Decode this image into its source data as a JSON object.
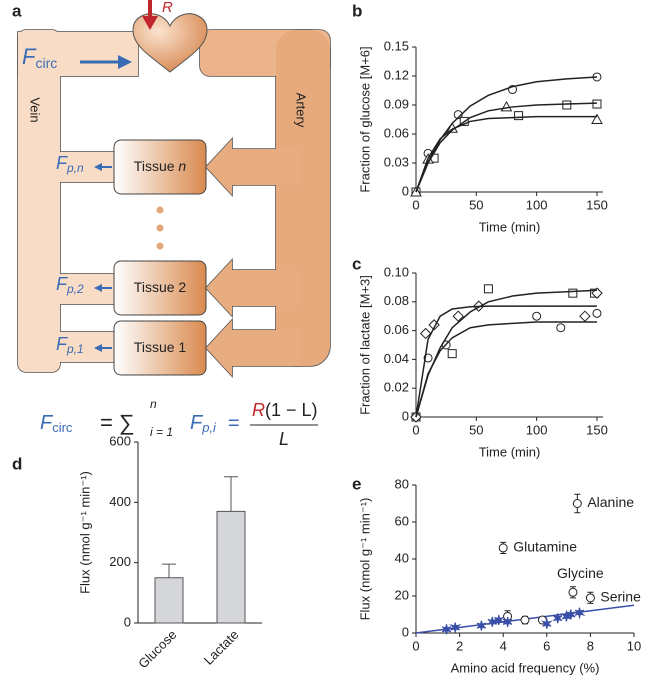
{
  "diagram": {
    "panel": "a",
    "input": "R",
    "fcirc": {
      "symbol": "F",
      "sub": "circ"
    },
    "vein": "Vein",
    "artery": "Artery",
    "tissues": [
      {
        "label": "Tissue",
        "index": "n",
        "flux": "F",
        "sub": "p,n"
      },
      {
        "label": "Tissue",
        "index": "2",
        "flux": "F",
        "sub": "p,2"
      },
      {
        "label": "Tissue",
        "index": "1",
        "flux": "F",
        "sub": "p,1"
      }
    ],
    "equation": {
      "lhs_symbol": "F",
      "lhs_sub": "circ",
      "sum": "= ∑",
      "sum_upper": "n",
      "sum_lower": "i = 1",
      "term_symbol": "F",
      "term_sub": "p,i",
      "equals": "=",
      "numerator_r": "R",
      "numerator_rest": "(1 − L)",
      "denominator": "L"
    }
  },
  "chart_data": [
    {
      "type": "scatter",
      "panel": "b",
      "y_label": "Fraction of glucose [M+6]",
      "x_label": "Time (min)",
      "xlim": [
        0,
        155
      ],
      "xticks": [
        0,
        50,
        100,
        150
      ],
      "ylim": [
        0,
        0.15
      ],
      "yticks": [
        0,
        0.03,
        0.06,
        0.09,
        0.12,
        0.15
      ],
      "series": [
        {
          "marker": "circle",
          "x": [
            0,
            10,
            35,
            80,
            150
          ],
          "values": [
            0,
            0.04,
            0.08,
            0.106,
            0.119
          ]
        },
        {
          "marker": "square",
          "x": [
            0,
            15,
            40,
            85,
            125,
            150
          ],
          "values": [
            0,
            0.035,
            0.073,
            0.079,
            0.09,
            0.091
          ]
        },
        {
          "marker": "triangle",
          "x": [
            0,
            10,
            30,
            75,
            150
          ],
          "values": [
            0,
            0.034,
            0.066,
            0.088,
            0.075
          ]
        },
        {
          "marker": "line",
          "color": "#222",
          "x": [
            0,
            10,
            20,
            30,
            45,
            60,
            80,
            100,
            125,
            150
          ],
          "values": [
            0,
            0.031,
            0.054,
            0.071,
            0.089,
            0.1,
            0.109,
            0.114,
            0.117,
            0.119
          ]
        },
        {
          "marker": "line",
          "color": "#222",
          "x": [
            0,
            10,
            20,
            30,
            45,
            60,
            80,
            100,
            125,
            150
          ],
          "values": [
            0,
            0.03,
            0.051,
            0.064,
            0.077,
            0.084,
            0.088,
            0.09,
            0.091,
            0.092
          ]
        },
        {
          "marker": "line",
          "color": "#222",
          "x": [
            0,
            10,
            20,
            30,
            45,
            60,
            80,
            100,
            125,
            150
          ],
          "values": [
            0,
            0.035,
            0.055,
            0.065,
            0.073,
            0.076,
            0.077,
            0.078,
            0.078,
            0.078
          ]
        }
      ]
    },
    {
      "type": "scatter",
      "panel": "c",
      "y_label": "Fraction of lactate [M+3]",
      "x_label": "Time (min)",
      "xlim": [
        0,
        155
      ],
      "xticks": [
        0,
        50,
        100,
        150
      ],
      "ylim": [
        0,
        0.1
      ],
      "yticks": [
        0,
        0.02,
        0.04,
        0.06,
        0.08,
        {
          "value": 0.1,
          "label": "0.10"
        }
      ],
      "series": [
        {
          "marker": "circle",
          "x": [
            0,
            10,
            25,
            100,
            120,
            150
          ],
          "values": [
            0,
            0.041,
            0.05,
            0.07,
            0.062,
            0.072
          ]
        },
        {
          "marker": "square",
          "x": [
            0,
            30,
            60,
            130,
            148
          ],
          "values": [
            0,
            0.044,
            0.089,
            0.086,
            0.086
          ]
        },
        {
          "marker": "diamond",
          "x": [
            0,
            8,
            15,
            35,
            52,
            140,
            150
          ],
          "values": [
            0,
            0.058,
            0.064,
            0.07,
            0.077,
            0.07,
            0.086
          ]
        },
        {
          "marker": "line",
          "color": "#222",
          "x": [
            0,
            10,
            20,
            30,
            45,
            60,
            80,
            100,
            125,
            150
          ],
          "values": [
            0,
            0.054,
            0.07,
            0.075,
            0.0766,
            0.077,
            0.077,
            0.077,
            0.077,
            0.077
          ]
        },
        {
          "marker": "line",
          "color": "#222",
          "x": [
            0,
            10,
            20,
            30,
            45,
            60,
            80,
            100,
            125,
            150
          ],
          "values": [
            0,
            0.03,
            0.046,
            0.055,
            0.062,
            0.064,
            0.065,
            0.066,
            0.066,
            0.066
          ]
        },
        {
          "marker": "line",
          "color": "#222",
          "x": [
            0,
            10,
            20,
            30,
            45,
            60,
            80,
            100,
            125,
            150
          ],
          "values": [
            0,
            0.029,
            0.048,
            0.062,
            0.073,
            0.08,
            0.084,
            0.086,
            0.087,
            0.088
          ]
        }
      ]
    },
    {
      "type": "bar",
      "panel": "d",
      "y_label": "Flux (nmol g⁻¹ min⁻¹)",
      "color": "#d4d6d9",
      "categories": [
        "Glucose",
        "Lactate"
      ],
      "values": [
        150,
        370
      ],
      "errors": [
        45,
        115
      ],
      "ylim": [
        0,
        600
      ],
      "yticks": [
        0,
        200,
        400,
        600
      ]
    },
    {
      "type": "scatter",
      "panel": "e",
      "y_label": "Flux (nmol g⁻¹ min⁻¹)",
      "x_label": "Amino acid frequency (%)",
      "xlim": [
        0,
        10
      ],
      "xticks": [
        0,
        2,
        4,
        6,
        8,
        10
      ],
      "ylim": [
        0,
        80
      ],
      "yticks": [
        0,
        20,
        40,
        60,
        80
      ],
      "series": [
        {
          "marker": "line",
          "color": "#3a4fa8",
          "x": [
            0,
            10
          ],
          "values": [
            0,
            15
          ]
        },
        {
          "marker": "circle",
          "x": [
            7.4,
            4,
            7.2,
            8,
            4.2,
            5,
            5.8
          ],
          "values": [
            70,
            46,
            22,
            19,
            9,
            7,
            7
          ],
          "errors": [
            5,
            3,
            3,
            3,
            3,
            2,
            1
          ],
          "labels": [
            "Alanine",
            "Glutamine",
            "Glycine",
            "Serine",
            null,
            null,
            null
          ]
        },
        {
          "marker": "star",
          "color": "#3a4fa8",
          "x": [
            1.4,
            1.8,
            3.0,
            3.5,
            3.8,
            4.2,
            6.0,
            6.5,
            6.9,
            7.1,
            7.5
          ],
          "values": [
            2,
            3,
            4,
            6,
            7,
            6,
            5,
            8,
            9,
            10,
            11
          ]
        }
      ]
    }
  ]
}
